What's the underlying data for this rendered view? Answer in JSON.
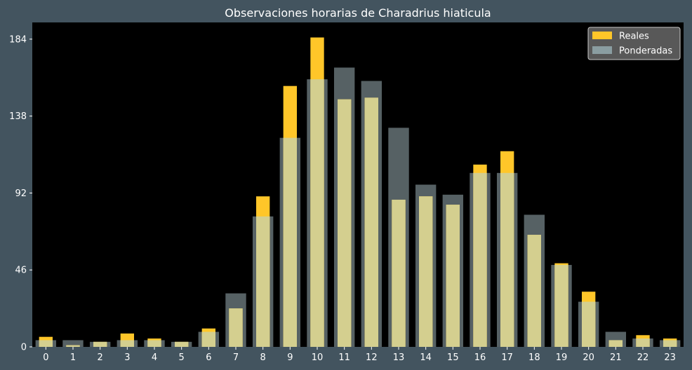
{
  "chart_data": {
    "type": "bar",
    "title": "Observaciones horarias de Charadrius hiaticula",
    "xlabel": "",
    "ylabel": "",
    "categories": [
      "0",
      "1",
      "2",
      "3",
      "4",
      "5",
      "6",
      "7",
      "8",
      "9",
      "10",
      "11",
      "12",
      "13",
      "14",
      "15",
      "16",
      "17",
      "18",
      "19",
      "20",
      "21",
      "22",
      "23"
    ],
    "series": [
      {
        "name": "Reales",
        "color": "#ffc629",
        "values": [
          6,
          1,
          3,
          8,
          5,
          3,
          11,
          23,
          90,
          156,
          185,
          148,
          149,
          88,
          90,
          85,
          109,
          117,
          67,
          50,
          33,
          4,
          7,
          5
        ]
      },
      {
        "name": "Ponderadas",
        "color": "#8a9da1",
        "values": [
          4,
          4,
          3,
          4,
          4,
          3,
          9,
          32,
          78,
          125,
          160,
          167,
          159,
          131,
          97,
          91,
          104,
          104,
          79,
          49,
          27,
          9,
          5,
          4
        ]
      }
    ],
    "ylim": [
      0,
      194
    ],
    "yticks": [
      0,
      46,
      92,
      138,
      184
    ],
    "legend_position": "top-right",
    "grid": false,
    "plot_background": "#000000",
    "figure_background": "#43545f",
    "overlap_color": "#d4cf8f"
  }
}
